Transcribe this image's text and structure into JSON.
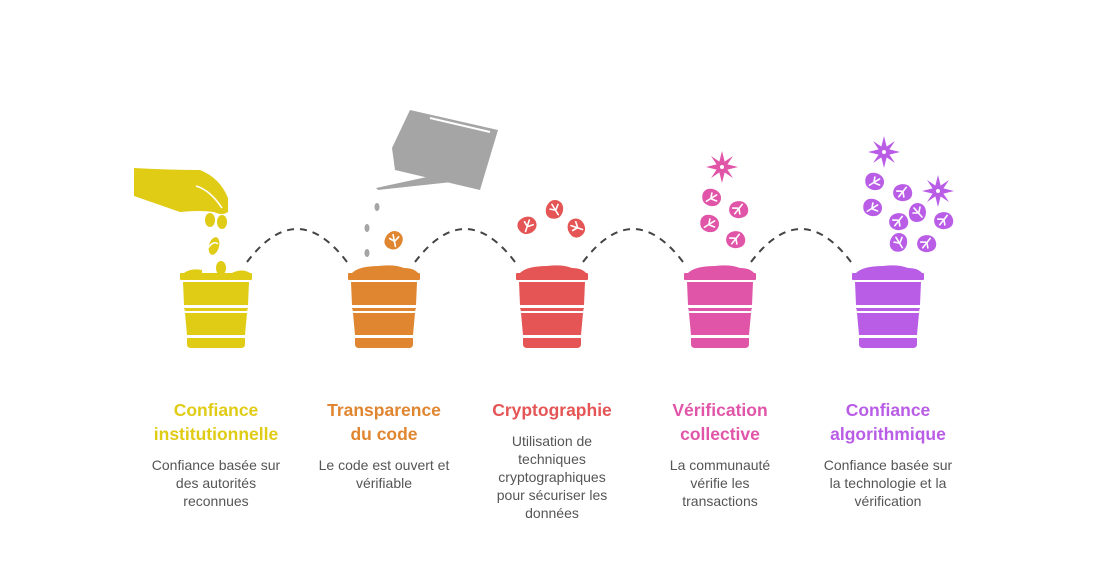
{
  "colors": {
    "step1": "#E0CB15",
    "step2": "#E08530",
    "step3": "#E55555",
    "step4": "#E055A8",
    "step5": "#B95DE6",
    "connector": "#444444",
    "watering_can": "#A5A5A5"
  },
  "steps": [
    {
      "title_lines": [
        "Confiance",
        "institutionnelle"
      ],
      "desc_lines": [
        "Confiance basée sur",
        "des autorités",
        "reconnues"
      ],
      "icon": "hand-sowing-seeds"
    },
    {
      "title_lines": [
        "Transparence",
        "du code"
      ],
      "desc_lines": [
        "Le code est ouvert et",
        "vérifiable"
      ],
      "icon": "watering-can-sprout"
    },
    {
      "title_lines": [
        "Cryptographie"
      ],
      "desc_lines": [
        "Utilisation de",
        "techniques",
        "cryptographiques",
        "pour sécuriser les",
        "données"
      ],
      "icon": "sprout-leaves"
    },
    {
      "title_lines": [
        "Vérification",
        "collective"
      ],
      "desc_lines": [
        "La communauté",
        "vérifie les",
        "transactions"
      ],
      "icon": "leaves-flower"
    },
    {
      "title_lines": [
        "Confiance",
        "algorithmique"
      ],
      "desc_lines": [
        "Confiance basée sur",
        "la technologie et la",
        "vérification"
      ],
      "icon": "leaves-flowers"
    }
  ]
}
